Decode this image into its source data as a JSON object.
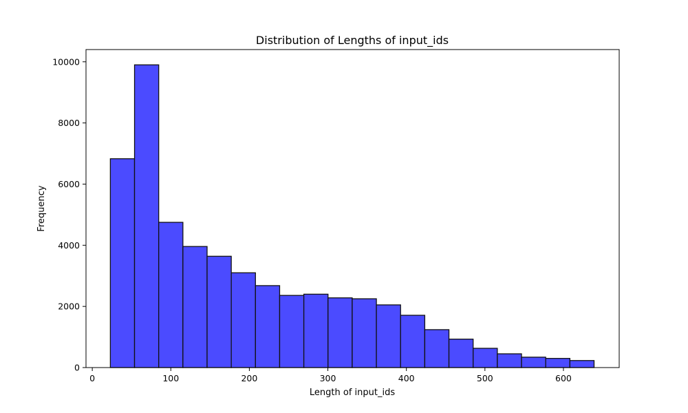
{
  "chart_data": {
    "type": "bar",
    "title": "Distribution of Lengths of input_ids",
    "xlabel": "Length of input_ids",
    "ylabel": "Frequency",
    "xlim": [
      -8,
      671
    ],
    "ylim": [
      0,
      10400
    ],
    "xticks": [
      0,
      100,
      200,
      300,
      400,
      500,
      600
    ],
    "yticks": [
      0,
      2000,
      4000,
      6000,
      8000,
      10000
    ],
    "grid": false,
    "bar_color": "#4b4bff",
    "edge_color": "#111111",
    "bin_edges": [
      23,
      53.8,
      84.6,
      115.4,
      146.2,
      177,
      207.8,
      238.6,
      269.4,
      300.2,
      331,
      361.8,
      392.6,
      423.4,
      454.2,
      485,
      515.8,
      546.6,
      577.4,
      608.2,
      639
    ],
    "values": [
      6830,
      9900,
      4750,
      3960,
      3640,
      3100,
      2680,
      2360,
      2400,
      2280,
      2250,
      2050,
      1710,
      1240,
      930,
      630,
      450,
      340,
      300,
      230
    ]
  }
}
